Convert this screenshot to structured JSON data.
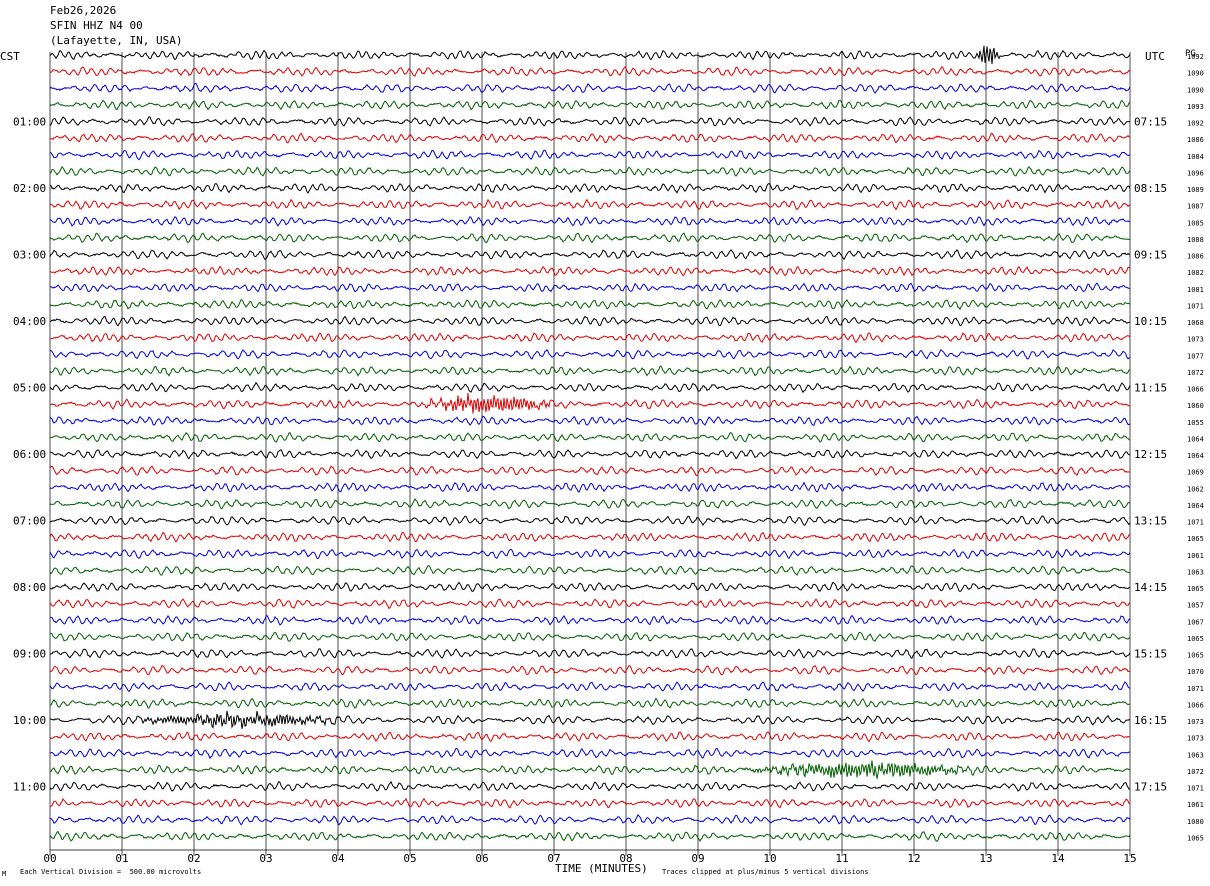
{
  "header": {
    "date": "Feb26,2026",
    "station": "SFIN HHZ N4 00",
    "location": "(Lafayette, IN, USA)"
  },
  "left_zone": "CST",
  "right_zone": "UTC",
  "right_top_label": "PG",
  "footer": {
    "scale_note": "Each Vertical Division =  500.00 microvolts",
    "xlabel": "TIME (MINUTES)",
    "clip_note": "Traces clipped at plus/minus 5 vertical divisions",
    "corner_mark": "M"
  },
  "colors": {
    "trace_cycle": [
      "#000000",
      "#e00000",
      "#0000e0",
      "#006000"
    ],
    "grid": "#000000"
  },
  "chart_data": {
    "type": "line",
    "title": "SFIN HHZ N4 00",
    "xlabel": "TIME (MINUTES)",
    "ylabel": "",
    "xlim": [
      0,
      15
    ],
    "x_ticks": [
      "00",
      "01",
      "02",
      "03",
      "04",
      "05",
      "06",
      "07",
      "08",
      "09",
      "10",
      "11",
      "12",
      "13",
      "14",
      "15"
    ],
    "left_time_labels": [
      "01:00",
      "02:00",
      "03:00",
      "04:00",
      "05:00",
      "06:00",
      "07:00",
      "08:00",
      "09:00",
      "10:00",
      "11:00"
    ],
    "right_time_labels": [
      "07:15",
      "08:15",
      "09:15",
      "10:15",
      "11:15",
      "12:15",
      "13:15",
      "14:15",
      "15:15",
      "16:15",
      "17:15"
    ],
    "trace_count": 48,
    "trace_values": [
      1092,
      1090,
      1090,
      1093,
      1092,
      1086,
      1084,
      1096,
      1089,
      1087,
      1085,
      1088,
      1086,
      1082,
      1081,
      1071,
      1068,
      1073,
      1077,
      1072,
      1066,
      1060,
      1055,
      1064,
      1064,
      1069,
      1062,
      1064,
      1071,
      1065,
      1061,
      1063,
      1065,
      1057,
      1067,
      1065,
      1065,
      1070,
      1071,
      1066,
      1073,
      1073,
      1063,
      1072,
      1071,
      1061,
      1080,
      1065
    ],
    "events": [
      {
        "trace": 21,
        "start_min": 5.1,
        "end_min": 7.1,
        "strength": 2.2
      },
      {
        "trace": 0,
        "start_min": 12.85,
        "end_min": 13.2,
        "strength": 2.6
      },
      {
        "trace": 40,
        "start_min": 1.0,
        "end_min": 4.2,
        "strength": 1.5
      },
      {
        "trace": 43,
        "start_min": 9.6,
        "end_min": 13.0,
        "strength": 1.8
      }
    ]
  }
}
